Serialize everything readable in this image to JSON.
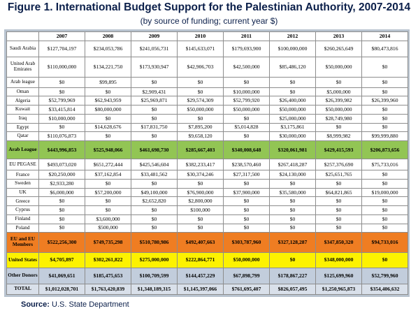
{
  "title": "Figure 1. International Budget Support for the Palestinian Authority, 2007-2014",
  "subtitle": "(by source of funding; current year $)",
  "source_label": "Source:",
  "source_text": "U.S. State Department",
  "chart_data": {
    "type": "table",
    "columns": [
      "2007",
      "2008",
      "2009",
      "2010",
      "2011",
      "2012",
      "2013",
      "2014"
    ],
    "rows": [
      {
        "label": "Saudi Arabia",
        "values": [
          "$127,704,197",
          "$234,053,786",
          "$241,056,731",
          "$145,633,071",
          "$179,693,900",
          "$100,000,000",
          "$260,265,649",
          "$80,473,816"
        ]
      },
      {
        "label": "United Arab Emirates",
        "values": [
          "$110,000,000",
          "$134,221,750",
          "$173,930,947",
          "$42,906,703",
          "$42,500,000",
          "$85,486,120",
          "$50,000,000",
          "$0"
        ]
      },
      {
        "label": "Arab league",
        "values": [
          "$0",
          "$99,895",
          "$0",
          "$0",
          "$0",
          "$0",
          "$0",
          "$0"
        ]
      },
      {
        "label": "Oman",
        "values": [
          "$0",
          "$0",
          "$2,909,431",
          "$0",
          "$10,000,000",
          "$0",
          "$5,000,000",
          "$0"
        ]
      },
      {
        "label": "Algeria",
        "values": [
          "$52,799,969",
          "$62,943,959",
          "$25,969,871",
          "$29,574,309",
          "$52,799,920",
          "$26,400,000",
          "$26,399,982",
          "$26,399,960"
        ]
      },
      {
        "label": "Kuwait",
        "values": [
          "$33,415,814",
          "$80,000,000",
          "$0",
          "$50,000,000",
          "$50,000,000",
          "$50,000,000",
          "$50,000,000",
          "$0"
        ]
      },
      {
        "label": "Iraq",
        "values": [
          "$10,000,000",
          "$0",
          "$0",
          "$0",
          "$0",
          "$25,000,000",
          "$28,749,980",
          "$0"
        ]
      },
      {
        "label": "Egypt",
        "values": [
          "$0",
          "$14,628,676",
          "$17,831,750",
          "$7,895,200",
          "$5,014,828",
          "$3,175,861",
          "$0",
          "$0"
        ]
      },
      {
        "label": "Qatar",
        "values": [
          "$110,076,873",
          "$0",
          "$0",
          "$9,658,120",
          "$0",
          "$30,000,000",
          "$8,999,982",
          "$99,999,880"
        ]
      },
      {
        "label": "Arab League",
        "bold": true,
        "color": "#92c554",
        "values": [
          "$443,996,853",
          "$525,948,066",
          "$461,698,730",
          "$285,667,403",
          "$340,008,648",
          "$320,061,981",
          "$429,415,593",
          "$206,873,656"
        ]
      },
      {
        "label": "EU PEGASE",
        "values": [
          "$493,073,020",
          "$651,272,444",
          "$425,546,604",
          "$382,233,417",
          "$238,570,460",
          "$267,418,287",
          "$257,376,690",
          "$75,733,016"
        ]
      },
      {
        "label": "France",
        "values": [
          "$20,250,000",
          "$37,162,854",
          "$33,481,562",
          "$30,374,246",
          "$27,317,500",
          "$24,130,000",
          "$25,651,765",
          "$0"
        ]
      },
      {
        "label": "Sweden",
        "values": [
          "$2,933,280",
          "$0",
          "$0",
          "$0",
          "$0",
          "$0",
          "$0",
          "$0"
        ]
      },
      {
        "label": "UK",
        "values": [
          "$6,000,000",
          "$57,200,000",
          "$49,100,000",
          "$76,900,000",
          "$37,900,000",
          "$35,580,000",
          "$64,821,865",
          "$19,000,000"
        ]
      },
      {
        "label": "Greece",
        "values": [
          "$0",
          "$0",
          "$2,652,820",
          "$2,800,000",
          "$0",
          "$0",
          "$0",
          "$0"
        ]
      },
      {
        "label": "Cyprus",
        "values": [
          "$0",
          "$0",
          "$0",
          "$100,000",
          "$0",
          "$0",
          "$0",
          "$0"
        ]
      },
      {
        "label": "Finland",
        "values": [
          "$0",
          "$3,600,000",
          "$0",
          "$0",
          "$0",
          "$0",
          "$0",
          "$0"
        ]
      },
      {
        "label": "Poland",
        "values": [
          "$0",
          "$500,000",
          "$0",
          "$0",
          "$0",
          "$0",
          "$0",
          "$0"
        ]
      },
      {
        "label": "EU and EU Members",
        "bold": true,
        "color": "#ef7d22",
        "values": [
          "$522,256,300",
          "$749,735,298",
          "$510,780,986",
          "$492,407,663",
          "$303,787,960",
          "$327,128,287",
          "$347,850,320",
          "$94,733,016"
        ]
      },
      {
        "label": "United States",
        "bold": true,
        "color": "#fdf200",
        "values": [
          "$4,705,897",
          "$302,261,822",
          "$275,000,000",
          "$222,864,771",
          "$50,000,000",
          "$0",
          "$348,000,000",
          "$0"
        ]
      },
      {
        "label": "Other Donors",
        "bold": true,
        "color": "#c2cddc",
        "values": [
          "$41,069,651",
          "$185,475,653",
          "$100,709,599",
          "$144,457,229",
          "$67,898,799",
          "$178,867,227",
          "$125,699,960",
          "$52,799,960"
        ]
      },
      {
        "label": "TOTAL",
        "total": true,
        "color": "#d9e0ea",
        "values": [
          "$1,012,028,701",
          "$1,763,420,839",
          "$1,348,189,315",
          "$1,145,397,066",
          "$761,695,407",
          "$826,057,495",
          "$1,250,965,873",
          "$354,406,632"
        ]
      }
    ]
  }
}
